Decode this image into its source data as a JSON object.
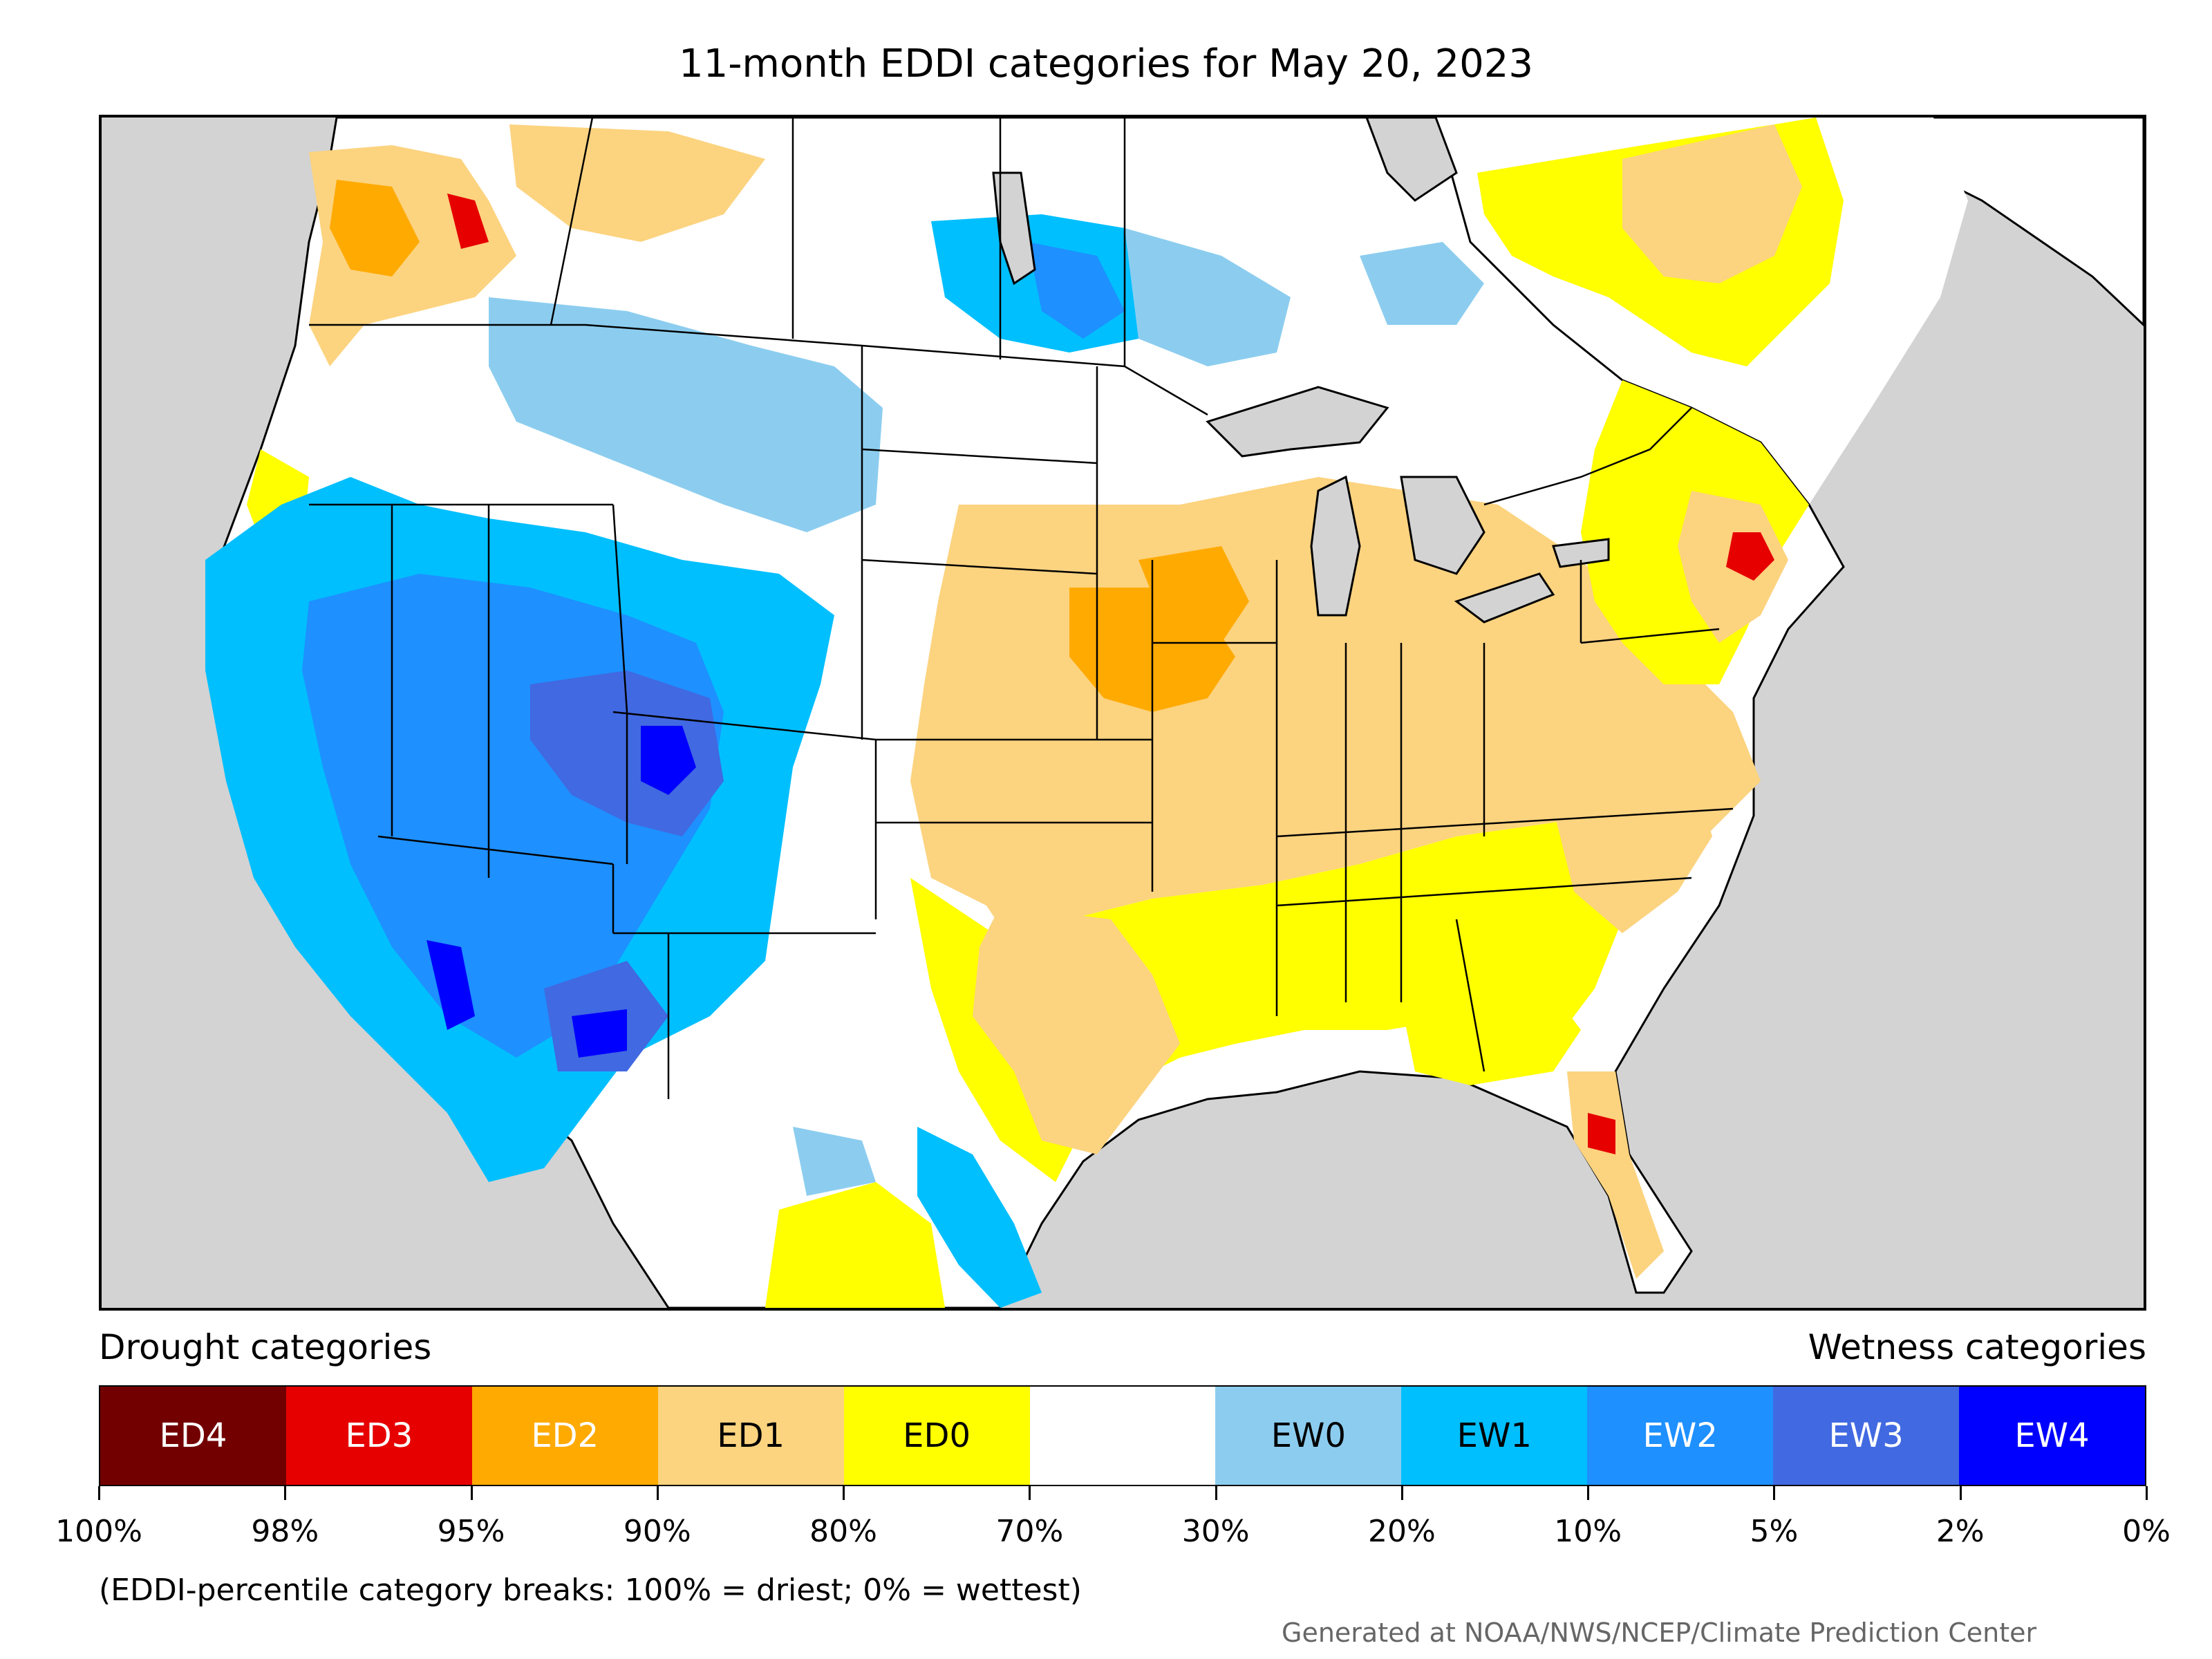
{
  "title": "11-month EDDI categories for May 20, 2023",
  "legend": {
    "drought_heading": "Drought categories",
    "wetness_heading": "Wetness categories",
    "categories": [
      {
        "label": "ED4",
        "color": "#730000",
        "text_color": "#ffffff"
      },
      {
        "label": "ED3",
        "color": "#e60000",
        "text_color": "#ffffff"
      },
      {
        "label": "ED2",
        "color": "#ffaa00",
        "text_color": "#ffffff"
      },
      {
        "label": "ED1",
        "color": "#fcd37f",
        "text_color": "#000000"
      },
      {
        "label": "ED0",
        "color": "#ffff00",
        "text_color": "#000000"
      },
      {
        "label": "",
        "color": "#ffffff",
        "text_color": "#000000"
      },
      {
        "label": "EW0",
        "color": "#8ccdef",
        "text_color": "#000000"
      },
      {
        "label": "EW1",
        "color": "#00bfff",
        "text_color": "#000000"
      },
      {
        "label": "EW2",
        "color": "#1e90ff",
        "text_color": "#ffffff"
      },
      {
        "label": "EW3",
        "color": "#4169e1",
        "text_color": "#ffffff"
      },
      {
        "label": "EW4",
        "color": "#0000ff",
        "text_color": "#ffffff"
      }
    ],
    "ticks": [
      "100%",
      "98%",
      "95%",
      "90%",
      "80%",
      "70%",
      "30%",
      "20%",
      "10%",
      "5%",
      "2%",
      "0%"
    ]
  },
  "note": "(EDDI-percentile category breaks: 100% = driest; 0% = wettest)",
  "credit": "Generated at NOAA/NWS/NCEP/Climate Prediction Center"
}
